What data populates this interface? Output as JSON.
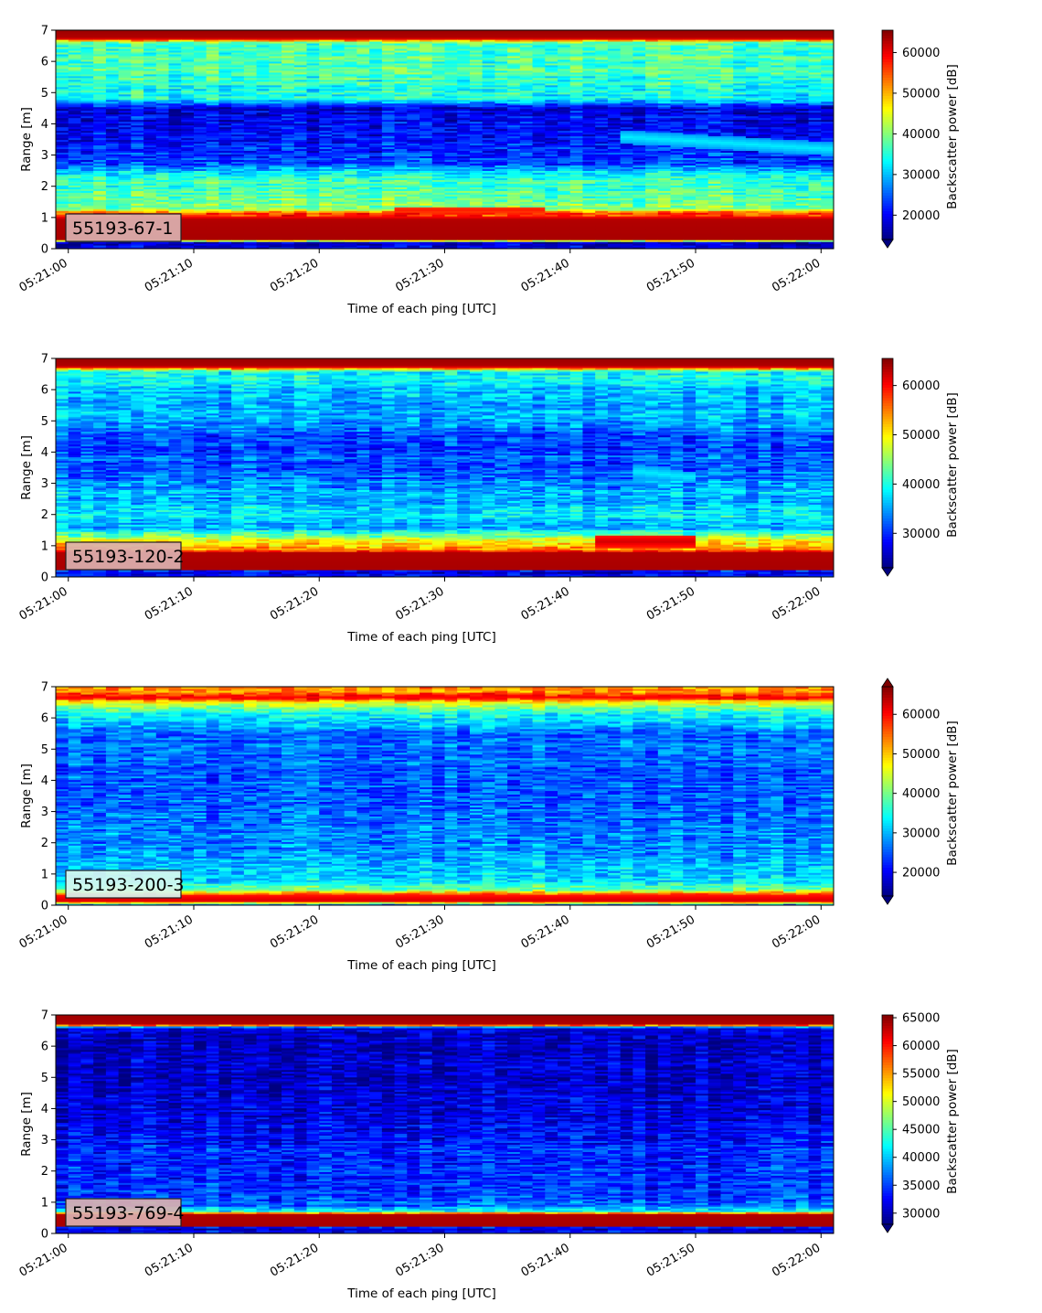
{
  "chart_data": [
    {
      "type": "heatmap",
      "badge": "55193-67-1",
      "badge_color": "#dbb1b0",
      "xlabel": "Time of each ping [UTC]",
      "ylabel": "Range [m]",
      "xticks": [
        "05:21:00",
        "05:21:10",
        "05:21:20",
        "05:21:30",
        "05:21:40",
        "05:21:50",
        "05:22:00"
      ],
      "xlim_seconds": [
        -1,
        61
      ],
      "yticks": [
        "0",
        "1",
        "2",
        "3",
        "4",
        "5",
        "6",
        "7"
      ],
      "ylim": [
        0,
        7
      ],
      "colorbar": {
        "label": "Backscatter power [dB]",
        "ticks": [
          "20000",
          "30000",
          "40000",
          "50000",
          "60000"
        ],
        "tick_values": [
          20000,
          30000,
          40000,
          50000,
          60000
        ],
        "vmin": 14000,
        "vmax": 65500,
        "extend": "min",
        "colormap": "jet"
      },
      "profile": [
        {
          "r": 0.0,
          "v": 0.1
        },
        {
          "r": 0.22,
          "v": 0.08
        },
        {
          "r": 0.3,
          "v": 0.96
        },
        {
          "r": 0.95,
          "v": 0.95
        },
        {
          "r": 1.15,
          "v": 0.78
        },
        {
          "r": 1.3,
          "v": 0.52
        },
        {
          "r": 1.6,
          "v": 0.48
        },
        {
          "r": 2.2,
          "v": 0.42
        },
        {
          "r": 2.45,
          "v": 0.36
        },
        {
          "r": 2.7,
          "v": 0.2
        },
        {
          "r": 3.5,
          "v": 0.12
        },
        {
          "r": 4.5,
          "v": 0.1
        },
        {
          "r": 4.8,
          "v": 0.38
        },
        {
          "r": 6.0,
          "v": 0.45
        },
        {
          "r": 6.6,
          "v": 0.44
        },
        {
          "r": 6.75,
          "v": 0.95
        },
        {
          "r": 7.0,
          "v": 0.97
        }
      ],
      "features": [
        {
          "t0": 44,
          "t1": 61,
          "r0": 3.6,
          "r1": 3.2,
          "w": 0.22,
          "v": 0.36
        },
        {
          "t0": 26,
          "t1": 38,
          "r0": 1.25,
          "r1": 1.25,
          "w": 0.12,
          "v": 0.85
        }
      ]
    },
    {
      "type": "heatmap",
      "badge": "55193-120-2",
      "badge_color": "#dbb1b0",
      "xlabel": "Time of each ping [UTC]",
      "ylabel": "Range [m]",
      "xticks": [
        "05:21:00",
        "05:21:10",
        "05:21:20",
        "05:21:30",
        "05:21:40",
        "05:21:50",
        "05:22:00"
      ],
      "xlim_seconds": [
        -1,
        61
      ],
      "yticks": [
        "0",
        "1",
        "2",
        "3",
        "4",
        "5",
        "6",
        "7"
      ],
      "ylim": [
        0,
        7
      ],
      "colorbar": {
        "label": "Backscatter power [dB]",
        "ticks": [
          "30000",
          "40000",
          "50000",
          "60000"
        ],
        "tick_values": [
          30000,
          40000,
          50000,
          60000
        ],
        "vmin": 23000,
        "vmax": 65500,
        "extend": "min",
        "colormap": "jet"
      },
      "profile": [
        {
          "r": 0.0,
          "v": 0.1
        },
        {
          "r": 0.2,
          "v": 0.08
        },
        {
          "r": 0.25,
          "v": 0.96
        },
        {
          "r": 0.8,
          "v": 0.95
        },
        {
          "r": 0.9,
          "v": 0.72
        },
        {
          "r": 1.15,
          "v": 0.65
        },
        {
          "r": 1.35,
          "v": 0.45
        },
        {
          "r": 1.6,
          "v": 0.3
        },
        {
          "r": 2.0,
          "v": 0.36
        },
        {
          "r": 2.4,
          "v": 0.3
        },
        {
          "r": 2.7,
          "v": 0.3
        },
        {
          "r": 3.2,
          "v": 0.22
        },
        {
          "r": 4.5,
          "v": 0.18
        },
        {
          "r": 5.0,
          "v": 0.28
        },
        {
          "r": 6.0,
          "v": 0.32
        },
        {
          "r": 6.6,
          "v": 0.4
        },
        {
          "r": 6.75,
          "v": 0.95
        },
        {
          "r": 7.0,
          "v": 0.97
        }
      ],
      "features": [
        {
          "t0": 42,
          "t1": 50,
          "r0": 1.15,
          "r1": 1.15,
          "w": 0.22,
          "v": 0.92
        },
        {
          "t0": 45,
          "t1": 50,
          "r0": 3.4,
          "r1": 3.2,
          "w": 0.18,
          "v": 0.36
        }
      ]
    },
    {
      "type": "heatmap",
      "badge": "55193-200-3",
      "badge_color": "#d7f6f0",
      "xlabel": "Time of each ping [UTC]",
      "ylabel": "Range [m]",
      "xticks": [
        "05:21:00",
        "05:21:10",
        "05:21:20",
        "05:21:30",
        "05:21:40",
        "05:21:50",
        "05:22:00"
      ],
      "xlim_seconds": [
        -1,
        61
      ],
      "yticks": [
        "0",
        "1",
        "2",
        "3",
        "4",
        "5",
        "6",
        "7"
      ],
      "ylim": [
        0,
        7
      ],
      "colorbar": {
        "label": "Backscatter power [dB]",
        "ticks": [
          "20000",
          "30000",
          "40000",
          "50000",
          "60000"
        ],
        "tick_values": [
          20000,
          30000,
          40000,
          50000,
          60000
        ],
        "vmin": 14000,
        "vmax": 67000,
        "extend": "both",
        "colormap": "jet"
      },
      "profile": [
        {
          "r": 0.0,
          "v": 0.15
        },
        {
          "r": 0.15,
          "v": 0.92
        },
        {
          "r": 0.35,
          "v": 0.85
        },
        {
          "r": 0.5,
          "v": 0.5
        },
        {
          "r": 0.8,
          "v": 0.35
        },
        {
          "r": 1.5,
          "v": 0.28
        },
        {
          "r": 2.5,
          "v": 0.24
        },
        {
          "r": 4.0,
          "v": 0.22
        },
        {
          "r": 5.5,
          "v": 0.24
        },
        {
          "r": 6.2,
          "v": 0.4
        },
        {
          "r": 6.5,
          "v": 0.62
        },
        {
          "r": 6.65,
          "v": 0.9
        },
        {
          "r": 6.85,
          "v": 0.72
        },
        {
          "r": 7.0,
          "v": 0.7
        }
      ],
      "features": []
    },
    {
      "type": "heatmap",
      "badge": "55193-769-4",
      "badge_color": "#dbb1b0",
      "xlabel": "Time of each ping [UTC]",
      "ylabel": "Range [m]",
      "xticks": [
        "05:21:00",
        "05:21:10",
        "05:21:20",
        "05:21:30",
        "05:21:40",
        "05:21:50",
        "05:22:00"
      ],
      "xlim_seconds": [
        -1,
        61
      ],
      "yticks": [
        "0",
        "1",
        "2",
        "3",
        "4",
        "5",
        "6",
        "7"
      ],
      "ylim": [
        0,
        7
      ],
      "colorbar": {
        "label": "Backscatter power [dB]",
        "ticks": [
          "30000",
          "35000",
          "40000",
          "45000",
          "50000",
          "55000",
          "60000",
          "65000"
        ],
        "tick_values": [
          30000,
          35000,
          40000,
          45000,
          50000,
          55000,
          60000,
          65000
        ],
        "vmin": 28000,
        "vmax": 65500,
        "extend": "min",
        "colormap": "jet"
      },
      "profile": [
        {
          "r": 0.0,
          "v": 0.1
        },
        {
          "r": 0.2,
          "v": 0.08
        },
        {
          "r": 0.25,
          "v": 0.96
        },
        {
          "r": 0.62,
          "v": 0.95
        },
        {
          "r": 0.72,
          "v": 0.4
        },
        {
          "r": 0.9,
          "v": 0.22
        },
        {
          "r": 1.5,
          "v": 0.16
        },
        {
          "r": 2.5,
          "v": 0.15
        },
        {
          "r": 3.5,
          "v": 0.1
        },
        {
          "r": 5.0,
          "v": 0.06
        },
        {
          "r": 6.6,
          "v": 0.06
        },
        {
          "r": 6.7,
          "v": 0.95
        },
        {
          "r": 7.0,
          "v": 0.97
        }
      ],
      "features": []
    }
  ]
}
